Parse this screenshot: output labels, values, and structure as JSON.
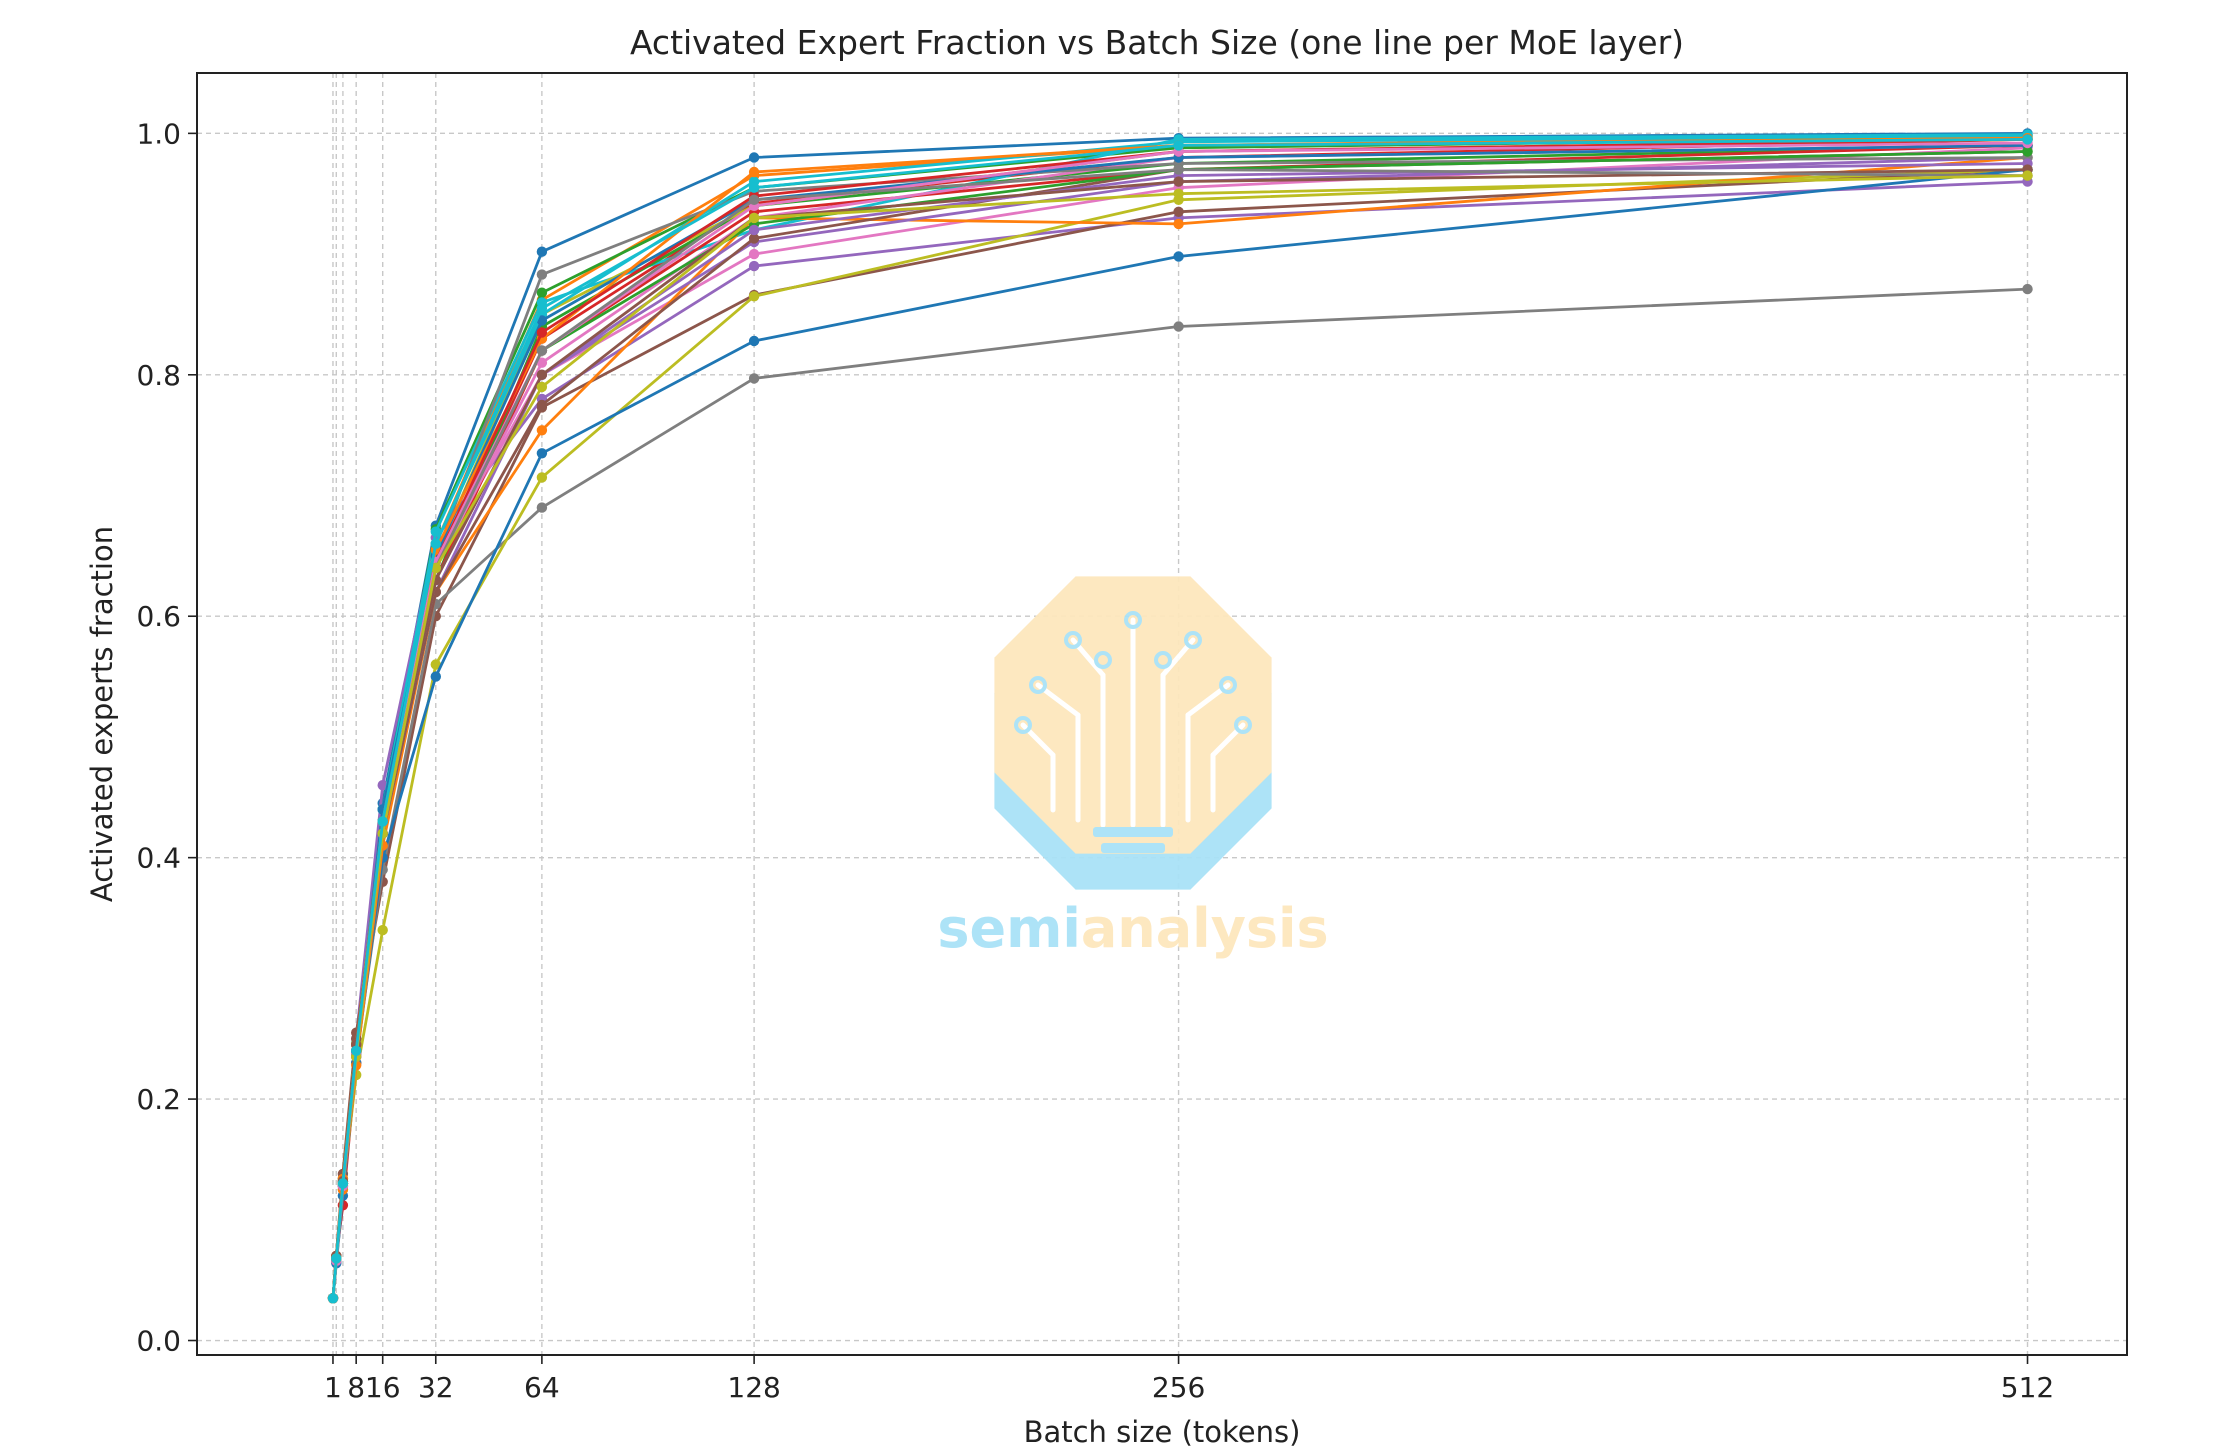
{
  "chart_data": {
    "type": "line",
    "title": "Activated Expert Fraction vs Batch Size (one line per MoE layer)",
    "xlabel": "Batch size (tokens)",
    "ylabel": "Activated experts fraction",
    "x": [
      1,
      2,
      4,
      8,
      16,
      32,
      64,
      128,
      256,
      512
    ],
    "x_ticks": [
      1,
      8,
      16,
      32,
      64,
      128,
      256,
      512
    ],
    "x_tick_labels": [
      "1",
      "8",
      "16",
      "32",
      "64",
      "128",
      "256",
      "512"
    ],
    "xlim": [
      -40,
      542
    ],
    "y_ticks": [
      0.0,
      0.2,
      0.4,
      0.6,
      0.8,
      1.0
    ],
    "y_tick_labels": [
      "0.0",
      "0.2",
      "0.4",
      "0.6",
      "0.8",
      "1.0"
    ],
    "ylim": [
      -0.012,
      1.05
    ],
    "grid": true,
    "legend": "none",
    "series": [
      {
        "color": "#1f77b4",
        "values": [
          0.035,
          0.066,
          0.13,
          0.245,
          0.445,
          0.675,
          0.902,
          0.98,
          0.996,
          1.0
        ]
      },
      {
        "color": "#ff7f0e",
        "values": [
          0.035,
          0.068,
          0.13,
          0.24,
          0.43,
          0.66,
          0.862,
          0.965,
          0.99,
          0.998
        ]
      },
      {
        "color": "#2ca02c",
        "values": [
          0.035,
          0.07,
          0.134,
          0.246,
          0.44,
          0.672,
          0.868,
          0.955,
          0.988,
          0.997
        ]
      },
      {
        "color": "#d62728",
        "values": [
          0.035,
          0.07,
          0.112,
          0.23,
          0.42,
          0.64,
          0.83,
          0.942,
          0.98,
          0.995
        ]
      },
      {
        "color": "#9467bd",
        "values": [
          0.035,
          0.068,
          0.128,
          0.25,
          0.46,
          0.665,
          0.78,
          0.89,
          0.93,
          0.96
        ]
      },
      {
        "color": "#8c564b",
        "values": [
          0.035,
          0.07,
          0.138,
          0.255,
          0.38,
          0.6,
          0.773,
          0.866,
          0.935,
          0.97
        ]
      },
      {
        "color": "#e377c2",
        "values": [
          0.035,
          0.068,
          0.13,
          0.24,
          0.43,
          0.645,
          0.8,
          0.9,
          0.955,
          0.988
        ]
      },
      {
        "color": "#7f7f7f",
        "values": [
          0.035,
          0.068,
          0.128,
          0.235,
          0.39,
          0.61,
          0.69,
          0.797,
          0.84,
          0.871
        ]
      },
      {
        "color": "#bcbd22",
        "values": [
          0.035,
          0.066,
          0.125,
          0.22,
          0.34,
          0.56,
          0.715,
          0.865,
          0.945,
          0.97
        ]
      },
      {
        "color": "#17becf",
        "values": [
          0.035,
          0.066,
          0.13,
          0.24,
          0.44,
          0.67,
          0.86,
          0.92,
          0.995,
          0.999
        ]
      },
      {
        "color": "#1f77b4",
        "values": [
          0.035,
          0.064,
          0.12,
          0.23,
          0.4,
          0.55,
          0.735,
          0.828,
          0.898,
          0.97
        ]
      },
      {
        "color": "#ff7f0e",
        "values": [
          0.035,
          0.066,
          0.125,
          0.228,
          0.41,
          0.62,
          0.754,
          0.93,
          0.925,
          0.98
        ]
      },
      {
        "color": "#2ca02c",
        "values": [
          0.035,
          0.068,
          0.13,
          0.24,
          0.43,
          0.63,
          0.84,
          0.94,
          0.975,
          0.99
        ]
      },
      {
        "color": "#d62728",
        "values": [
          0.035,
          0.07,
          0.132,
          0.245,
          0.43,
          0.63,
          0.82,
          0.935,
          0.97,
          0.99
        ]
      },
      {
        "color": "#9467bd",
        "values": [
          0.035,
          0.068,
          0.13,
          0.238,
          0.42,
          0.62,
          0.8,
          0.91,
          0.96,
          0.98
        ]
      },
      {
        "color": "#8c564b",
        "values": [
          0.035,
          0.07,
          0.132,
          0.25,
          0.42,
          0.62,
          0.775,
          0.913,
          0.97,
          0.985
        ]
      },
      {
        "color": "#e377c2",
        "values": [
          0.035,
          0.066,
          0.128,
          0.235,
          0.42,
          0.64,
          0.81,
          0.93,
          0.98,
          0.99
        ]
      },
      {
        "color": "#7f7f7f",
        "values": [
          0.035,
          0.07,
          0.132,
          0.245,
          0.43,
          0.65,
          0.883,
          0.952,
          0.975,
          0.98
        ]
      },
      {
        "color": "#bcbd22",
        "values": [
          0.035,
          0.068,
          0.13,
          0.24,
          0.43,
          0.65,
          0.85,
          0.94,
          0.985,
          0.995
        ]
      },
      {
        "color": "#17becf",
        "values": [
          0.035,
          0.068,
          0.13,
          0.24,
          0.43,
          0.66,
          0.85,
          0.96,
          0.993,
          0.998
        ]
      },
      {
        "color": "#1f77b4",
        "values": [
          0.035,
          0.066,
          0.128,
          0.238,
          0.44,
          0.65,
          0.845,
          0.945,
          0.98,
          0.99
        ]
      },
      {
        "color": "#ff7f0e",
        "values": [
          0.035,
          0.07,
          0.134,
          0.245,
          0.43,
          0.655,
          0.83,
          0.968,
          0.99,
          0.996
        ]
      },
      {
        "color": "#2ca02c",
        "values": [
          0.035,
          0.068,
          0.13,
          0.238,
          0.43,
          0.64,
          0.82,
          0.925,
          0.97,
          0.985
        ]
      },
      {
        "color": "#d62728",
        "values": [
          0.035,
          0.068,
          0.13,
          0.24,
          0.43,
          0.645,
          0.835,
          0.948,
          0.985,
          0.995
        ]
      },
      {
        "color": "#9467bd",
        "values": [
          0.035,
          0.068,
          0.128,
          0.235,
          0.42,
          0.63,
          0.8,
          0.92,
          0.965,
          0.975
        ]
      },
      {
        "color": "#8c564b",
        "values": [
          0.035,
          0.07,
          0.132,
          0.245,
          0.42,
          0.63,
          0.8,
          0.93,
          0.96,
          0.97
        ]
      },
      {
        "color": "#e377c2",
        "values": [
          0.035,
          0.066,
          0.128,
          0.238,
          0.43,
          0.645,
          0.82,
          0.94,
          0.985,
          0.992
        ]
      },
      {
        "color": "#7f7f7f",
        "values": [
          0.035,
          0.068,
          0.13,
          0.24,
          0.42,
          0.64,
          0.82,
          0.945,
          0.97,
          0.965
        ]
      },
      {
        "color": "#bcbd22",
        "values": [
          0.035,
          0.068,
          0.13,
          0.235,
          0.42,
          0.64,
          0.79,
          0.93,
          0.95,
          0.965
        ]
      },
      {
        "color": "#17becf",
        "values": [
          0.035,
          0.068,
          0.13,
          0.24,
          0.43,
          0.66,
          0.855,
          0.955,
          0.99,
          0.995
        ]
      }
    ]
  },
  "watermark": {
    "brand_part1": "semi",
    "brand_part2": "analysis",
    "colors": {
      "light_blue": "#a9e2f7",
      "peach": "#fde7bd"
    }
  }
}
